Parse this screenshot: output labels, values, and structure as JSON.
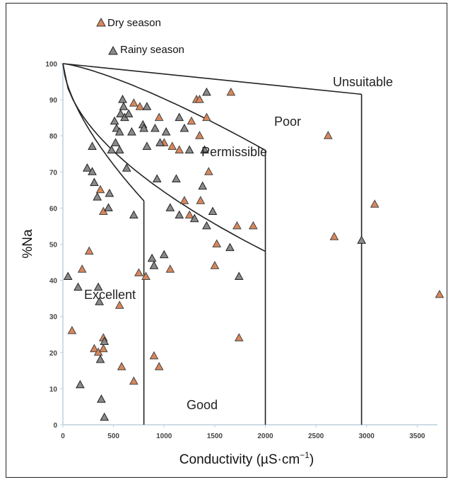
{
  "chart_data": {
    "type": "scatter",
    "title": "",
    "xlabel": "Conductivity (µS·cm",
    "xlabel_sup": "−1",
    "xlabel_close": ")",
    "ylabel": "%Na",
    "xlim": [
      0,
      3700
    ],
    "ylim": [
      0,
      100
    ],
    "x_ticks": [
      0,
      500,
      1000,
      1500,
      2000,
      2500,
      3000,
      3500
    ],
    "y_ticks": [
      0,
      10,
      20,
      30,
      40,
      50,
      60,
      70,
      80,
      90,
      100
    ],
    "grid": false,
    "legend_position": "top-left",
    "colors": {
      "dry": "#d9875a",
      "rainy": "#8a8a8a",
      "boundary": "#222222"
    },
    "regions": [
      "Excellent",
      "Good",
      "Permissible",
      "Poor",
      "Unsuitable"
    ],
    "series": [
      {
        "name": "Dry season",
        "points": [
          [
            90,
            26
          ],
          [
            190,
            43
          ],
          [
            260,
            48
          ],
          [
            310,
            21
          ],
          [
            350,
            20
          ],
          [
            370,
            65
          ],
          [
            400,
            59
          ],
          [
            400,
            24
          ],
          [
            400,
            21
          ],
          [
            560,
            33
          ],
          [
            580,
            16
          ],
          [
            700,
            12
          ],
          [
            750,
            42
          ],
          [
            820,
            41
          ],
          [
            900,
            19
          ],
          [
            950,
            16
          ],
          [
            1060,
            43
          ],
          [
            700,
            89
          ],
          [
            760,
            88
          ],
          [
            950,
            85
          ],
          [
            1000,
            78
          ],
          [
            1080,
            77
          ],
          [
            1150,
            76
          ],
          [
            1270,
            84
          ],
          [
            1350,
            80
          ],
          [
            1320,
            90
          ],
          [
            1350,
            90
          ],
          [
            1420,
            85
          ],
          [
            1440,
            70
          ],
          [
            1660,
            92
          ],
          [
            1200,
            62
          ],
          [
            1250,
            58
          ],
          [
            1360,
            62
          ],
          [
            1520,
            50
          ],
          [
            1500,
            44
          ],
          [
            1720,
            55
          ],
          [
            1880,
            55
          ],
          [
            1740,
            24
          ],
          [
            2620,
            80
          ],
          [
            2680,
            52
          ],
          [
            3080,
            61
          ],
          [
            3720,
            36
          ]
        ]
      },
      {
        "name": "Rainy season",
        "points": [
          [
            50,
            41
          ],
          [
            170,
            11
          ],
          [
            150,
            38
          ],
          [
            240,
            71
          ],
          [
            290,
            77
          ],
          [
            290,
            70
          ],
          [
            310,
            67
          ],
          [
            340,
            63
          ],
          [
            350,
            38
          ],
          [
            360,
            34
          ],
          [
            370,
            18
          ],
          [
            380,
            7
          ],
          [
            410,
            23
          ],
          [
            410,
            2
          ],
          [
            450,
            60
          ],
          [
            460,
            64
          ],
          [
            480,
            76
          ],
          [
            510,
            84
          ],
          [
            520,
            78
          ],
          [
            530,
            82
          ],
          [
            560,
            81
          ],
          [
            560,
            76
          ],
          [
            570,
            86
          ],
          [
            590,
            90
          ],
          [
            600,
            88
          ],
          [
            610,
            85
          ],
          [
            630,
            71
          ],
          [
            650,
            86
          ],
          [
            680,
            81
          ],
          [
            700,
            58
          ],
          [
            790,
            83
          ],
          [
            800,
            82
          ],
          [
            830,
            77
          ],
          [
            830,
            88
          ],
          [
            880,
            46
          ],
          [
            900,
            44
          ],
          [
            910,
            82
          ],
          [
            930,
            68
          ],
          [
            960,
            78
          ],
          [
            1000,
            47
          ],
          [
            1020,
            81
          ],
          [
            1060,
            60
          ],
          [
            1120,
            68
          ],
          [
            1150,
            58
          ],
          [
            1150,
            85
          ],
          [
            1200,
            82
          ],
          [
            1250,
            76
          ],
          [
            1300,
            57
          ],
          [
            1380,
            66
          ],
          [
            1400,
            76
          ],
          [
            1420,
            92
          ],
          [
            1420,
            55
          ],
          [
            1480,
            59
          ],
          [
            1650,
            49
          ],
          [
            1740,
            41
          ],
          [
            2950,
            51
          ]
        ]
      }
    ]
  }
}
